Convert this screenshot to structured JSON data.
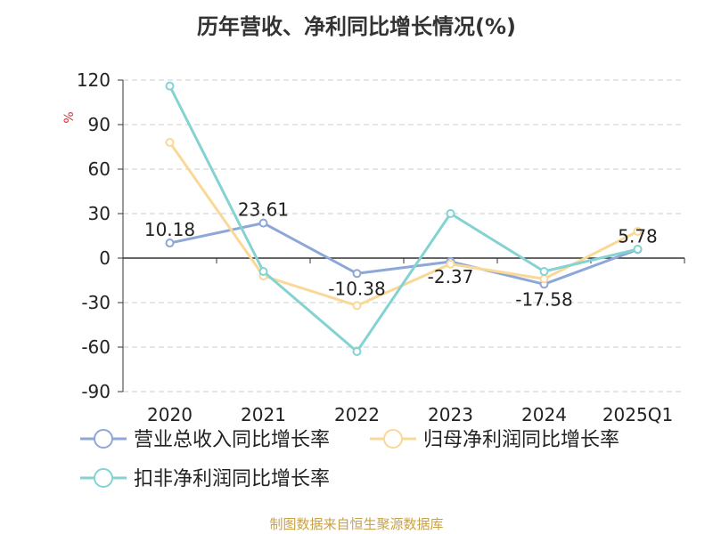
{
  "chart_data": {
    "type": "line",
    "title": "历年营收、净利同比增长情况(%)",
    "ylabel": "%",
    "xlabel": "",
    "categories": [
      "2020",
      "2021",
      "2022",
      "2023",
      "2024",
      "2025Q1"
    ],
    "yticks": [
      120,
      90,
      60,
      30,
      0,
      -30,
      -60,
      -90
    ],
    "ylim": [
      -90,
      120
    ],
    "grid": true,
    "legend_position": "bottom-left",
    "series": [
      {
        "name": "营业总收入同比增长率",
        "color": "#8da7d6",
        "values": [
          10.18,
          23.61,
          -10.38,
          -2.37,
          -17.58,
          5.78
        ],
        "labels": [
          "10.18",
          "23.61",
          "-10.38",
          "-2.37",
          "-17.58",
          "5.78"
        ]
      },
      {
        "name": "归母净利润同比增长率",
        "color": "#fad896",
        "values": [
          78,
          -12,
          -32,
          -4,
          -14,
          18
        ]
      },
      {
        "name": "扣非净利润同比增长率",
        "color": "#84d3d2",
        "values": [
          116,
          -9,
          -63,
          30,
          -9,
          6
        ]
      }
    ]
  },
  "source": "制图数据来自恒生聚源数据库"
}
